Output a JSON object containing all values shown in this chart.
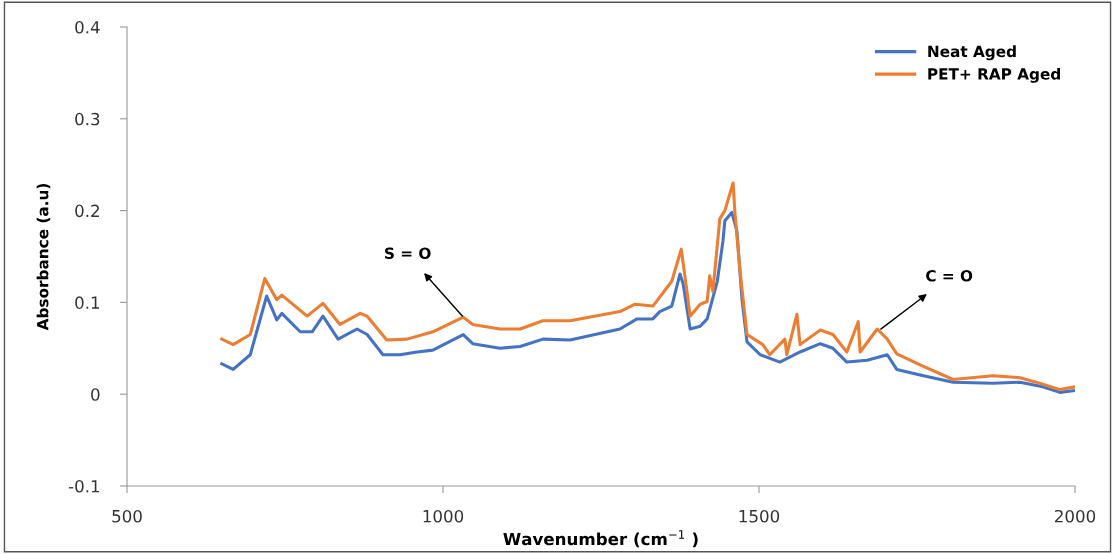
{
  "chart_data": {
    "type": "line",
    "xlabel": "Wavenumber (cm$^{−1}$ )",
    "ylabel": "Absorbance (a.u)",
    "xlim": [
      500,
      2000
    ],
    "xticks": [
      500,
      1000,
      1500,
      2000
    ],
    "ylim": [
      -0.1,
      0.4
    ],
    "yticks": [
      -0.1,
      0,
      0.1,
      0.2,
      0.3,
      0.4
    ],
    "grid": false,
    "legend": "top right",
    "line_style": "solid",
    "marker": "none",
    "annotations": [
      {
        "text": "S = O",
        "x": 1032,
        "y": 0.084
      },
      {
        "text": "C = O",
        "x": 1691,
        "y": 0.07
      }
    ],
    "series": [
      {
        "name": "Neat Aged",
        "color": "#4472c4",
        "x": [
          650,
          668,
          695,
          721,
          737,
          745,
          774,
          793,
          810,
          834,
          864,
          880,
          905,
          932,
          959,
          984,
          1032,
          1047,
          1090,
          1122,
          1158,
          1201,
          1280,
          1307,
          1332,
          1343,
          1362,
          1375,
          1380,
          1391,
          1407,
          1418,
          1434,
          1443,
          1446,
          1457,
          1465,
          1473,
          1481,
          1502,
          1533,
          1565,
          1597,
          1617,
          1639,
          1671,
          1703,
          1718,
          1755,
          1807,
          1870,
          1913,
          1949,
          1976,
          2000
        ],
        "values": [
          0.033,
          0.027,
          0.043,
          0.107,
          0.081,
          0.088,
          0.068,
          0.068,
          0.085,
          0.06,
          0.071,
          0.065,
          0.043,
          0.043,
          0.046,
          0.048,
          0.065,
          0.055,
          0.05,
          0.052,
          0.06,
          0.059,
          0.071,
          0.082,
          0.082,
          0.09,
          0.096,
          0.131,
          0.12,
          0.071,
          0.074,
          0.082,
          0.123,
          0.167,
          0.189,
          0.198,
          0.178,
          0.104,
          0.057,
          0.043,
          0.035,
          0.046,
          0.055,
          0.05,
          0.035,
          0.037,
          0.043,
          0.027,
          0.021,
          0.013,
          0.012,
          0.013,
          0.008,
          0.002,
          0.004
        ]
      },
      {
        "name": "PET+ RAP Aged",
        "color": "#ed7d31",
        "x": [
          650,
          668,
          695,
          718,
          737,
          745,
          785,
          810,
          837,
          869,
          880,
          911,
          943,
          984,
          1032,
          1047,
          1090,
          1122,
          1158,
          1201,
          1280,
          1304,
          1332,
          1340,
          1362,
          1377,
          1386,
          1391,
          1407,
          1418,
          1422,
          1427,
          1438,
          1446,
          1459,
          1462,
          1470,
          1481,
          1506,
          1517,
          1541,
          1544,
          1560,
          1565,
          1597,
          1617,
          1639,
          1657,
          1660,
          1687,
          1703,
          1718,
          1755,
          1807,
          1870,
          1913,
          1949,
          1976,
          2000
        ],
        "values": [
          0.06,
          0.054,
          0.065,
          0.126,
          0.103,
          0.108,
          0.085,
          0.099,
          0.076,
          0.088,
          0.085,
          0.059,
          0.06,
          0.068,
          0.084,
          0.076,
          0.071,
          0.071,
          0.08,
          0.08,
          0.09,
          0.098,
          0.096,
          0.103,
          0.123,
          0.158,
          0.112,
          0.085,
          0.098,
          0.101,
          0.129,
          0.112,
          0.191,
          0.2,
          0.23,
          0.197,
          0.134,
          0.065,
          0.054,
          0.043,
          0.06,
          0.043,
          0.087,
          0.054,
          0.07,
          0.065,
          0.046,
          0.079,
          0.046,
          0.071,
          0.06,
          0.044,
          0.032,
          0.016,
          0.02,
          0.018,
          0.011,
          0.005,
          0.008
        ]
      }
    ]
  }
}
